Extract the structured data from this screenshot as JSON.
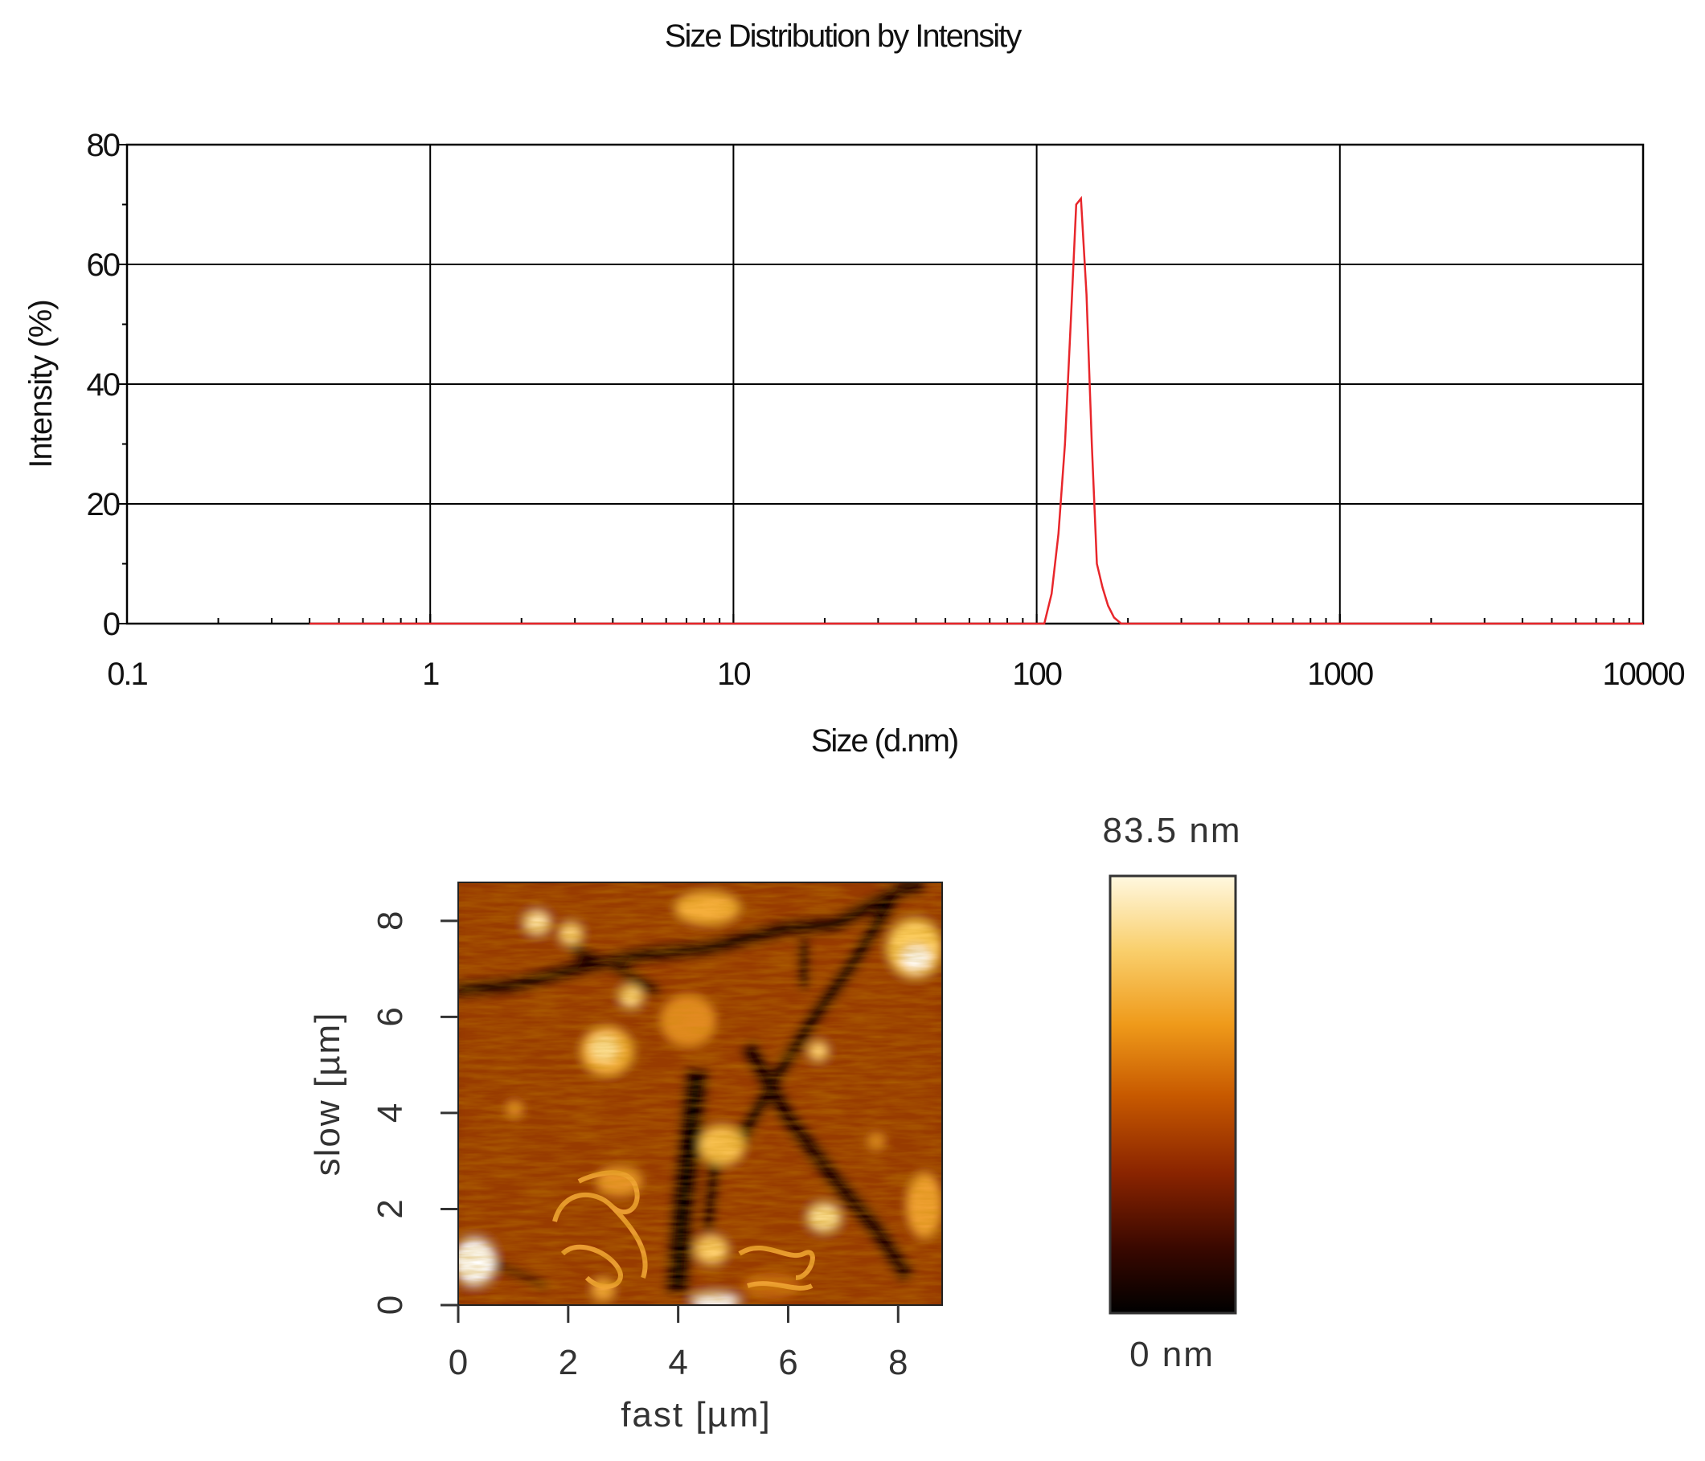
{
  "chart_data": [
    {
      "type": "line",
      "title": "Size Distribution by Intensity",
      "xlabel": "Size (d.nm)",
      "ylabel": "Intensity (%)",
      "x_scale": "log",
      "xlim": [
        0.1,
        10000
      ],
      "ylim": [
        0,
        80
      ],
      "x_ticks": [
        "0.1",
        "1",
        "10",
        "100",
        "1000",
        "10000"
      ],
      "y_ticks": [
        "0",
        "20",
        "40",
        "60",
        "80"
      ],
      "grid": true,
      "line_color": "#e8262b",
      "series": [
        {
          "x": [
            0.4,
            1,
            10,
            100,
            106,
            112,
            118,
            124,
            130,
            135,
            140,
            146,
            152,
            158,
            165,
            172,
            180,
            190,
            200,
            500,
            1000,
            5000,
            10000
          ],
          "y": [
            0,
            0,
            0,
            0,
            0,
            5,
            15,
            30,
            52,
            70,
            71,
            55,
            30,
            10,
            6,
            3,
            1,
            0,
            0,
            0,
            0,
            0,
            0
          ]
        }
      ]
    },
    {
      "type": "heatmap",
      "description_kind": "AFM height image",
      "xlabel": "fast [µm]",
      "ylabel": "slow [µm]",
      "x_ticks": [
        "0",
        "2",
        "4",
        "6",
        "8"
      ],
      "y_ticks": [
        "0",
        "2",
        "4",
        "6",
        "8"
      ],
      "xlim": [
        0,
        8.8
      ],
      "ylim": [
        0,
        8.8
      ],
      "colorbar": {
        "max_label": "83.5 nm",
        "min_label": "0 nm",
        "min": 0,
        "max": 83.5,
        "colors": [
          "#000000",
          "#3a0800",
          "#8a2400",
          "#c85a00",
          "#ef9a1a",
          "#f9cf6c",
          "#fff8e0"
        ]
      }
    }
  ]
}
